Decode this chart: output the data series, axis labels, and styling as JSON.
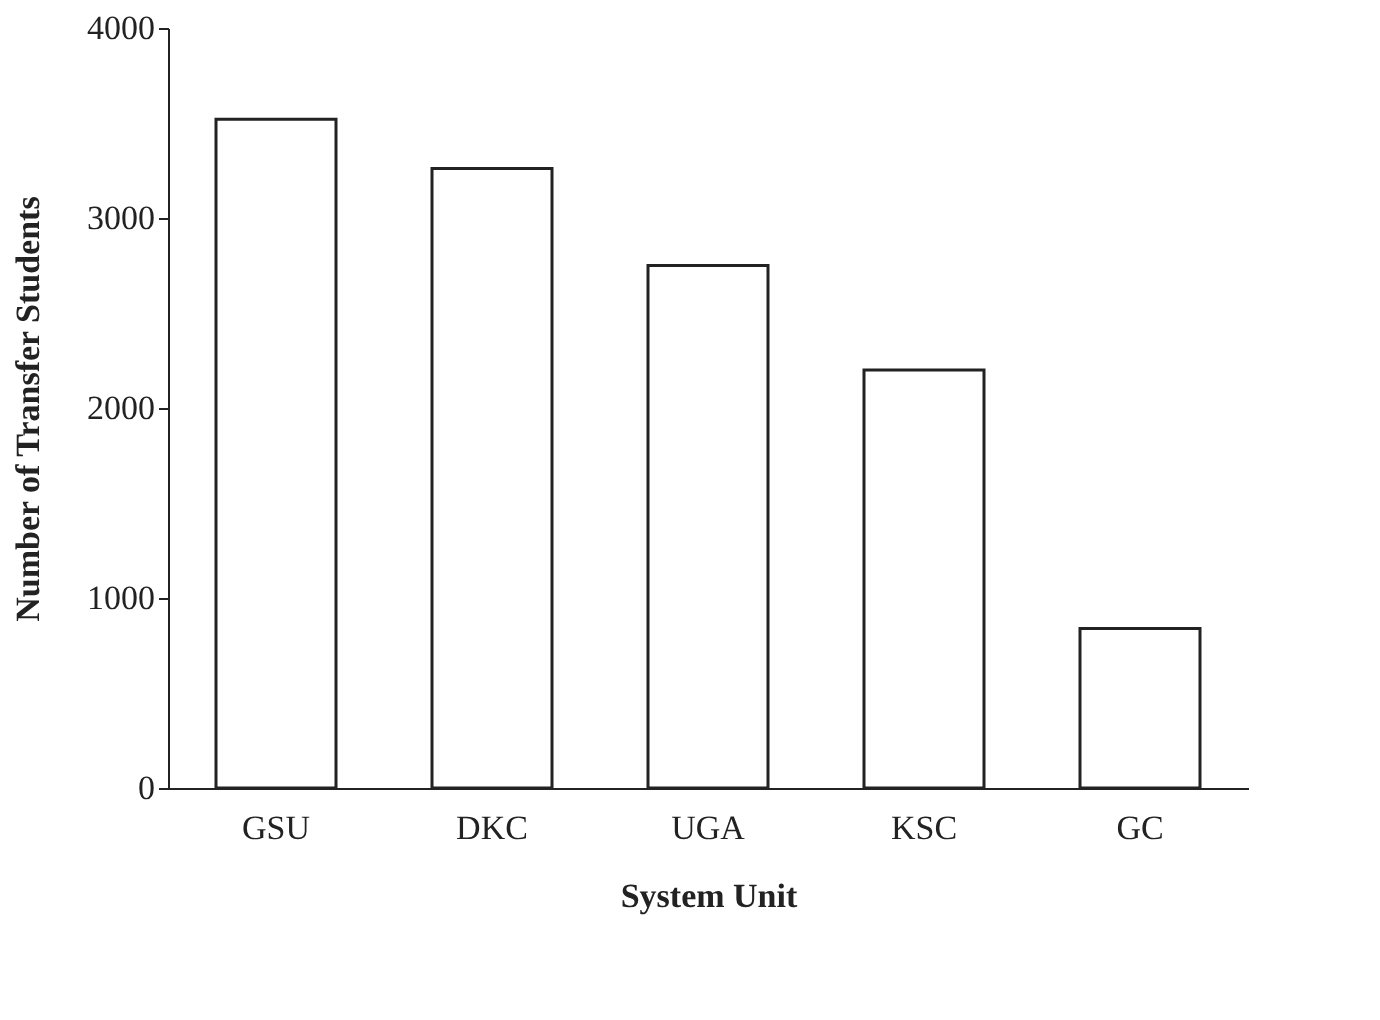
{
  "chart_data": {
    "type": "bar",
    "xlabel": "System Unit",
    "ylabel": "Number of Transfer Students",
    "categories": [
      "GSU",
      "DKC",
      "UGA",
      "KSC",
      "GC"
    ],
    "values": [
      3520,
      3260,
      2750,
      2200,
      840
    ],
    "color": "#ffffff",
    "ylim": [
      0,
      4000
    ],
    "yticks": [
      0,
      1000,
      2000,
      3000,
      4000
    ],
    "grid": false
  }
}
